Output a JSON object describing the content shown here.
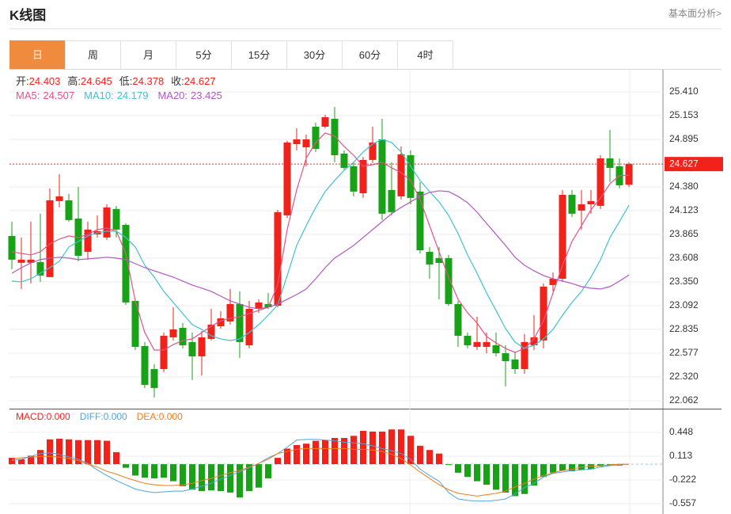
{
  "header": {
    "title": "K线图",
    "link": "基本面分析>"
  },
  "tabs": [
    "日",
    "周",
    "月",
    "5分",
    "15分",
    "30分",
    "60分",
    "4时"
  ],
  "active_tab": 0,
  "chart_data": [
    {
      "type": "candlestick",
      "ohlc_labels": [
        "开:",
        "高:",
        "低:",
        "收:"
      ],
      "up_color": "#f2221b",
      "down_color": "#17a217",
      "open": [
        23.848,
        23.557,
        23.557,
        23.565,
        23.402,
        24.226,
        24.234,
        24.037,
        23.676,
        23.865,
        23.831,
        24.14,
        23.968,
        23.144,
        22.655,
        22.405,
        22.405,
        22.749,
        22.852,
        22.698,
        22.543,
        22.732,
        22.869,
        22.921,
        23.11,
        22.663,
        23.058,
        23.11,
        23.092,
        24.071,
        24.843,
        24.809,
        25.032,
        25.032,
        25.118,
        24.741,
        24.603,
        24.311,
        24.672,
        24.895,
        24.346,
        24.277,
        24.723,
        24.329,
        23.676,
        23.608,
        23.608,
        23.11,
        22.766,
        22.646,
        22.646,
        22.663,
        22.577,
        22.509,
        22.405,
        22.663,
        22.715,
        23.316,
        23.384,
        24.294,
        24.123,
        24.191,
        24.174,
        24.689,
        24.603,
        24.403
      ],
      "high": [
        24.003,
        23.831,
        24.003,
        24.089,
        24.363,
        24.517,
        24.303,
        24.38,
        24.003,
        24.071,
        24.191,
        24.174,
        23.985,
        23.161,
        22.698,
        22.457,
        22.801,
        23.075,
        22.904,
        22.801,
        22.818,
        23.058,
        23.032,
        23.273,
        23.247,
        23.144,
        23.161,
        23.23,
        24.131,
        24.878,
        25.015,
        24.947,
        25.075,
        25.161,
        25.247,
        24.775,
        24.646,
        24.706,
        25.032,
        25.118,
        24.646,
        24.818,
        24.775,
        24.432,
        23.728,
        23.728,
        23.642,
        23.144,
        22.801,
        22.972,
        22.801,
        22.801,
        22.663,
        22.594,
        22.784,
        22.99,
        23.333,
        23.453,
        24.346,
        24.346,
        24.346,
        24.346,
        24.723,
        24.998,
        24.689,
        24.645
      ],
      "low": [
        23.488,
        23.273,
        23.333,
        23.35,
        23.402,
        24.157,
        24.003,
        23.574,
        23.591,
        23.831,
        23.805,
        23.831,
        23.101,
        22.612,
        22.2,
        22.097,
        22.371,
        22.715,
        22.629,
        22.286,
        22.337,
        22.715,
        22.843,
        22.887,
        22.526,
        22.629,
        23.015,
        23.058,
        23.075,
        24.045,
        24.775,
        24.603,
        24.758,
        25.015,
        24.646,
        24.569,
        24.277,
        24.26,
        24.638,
        24.02,
        24.071,
        24.243,
        24.191,
        23.659,
        23.384,
        23.161,
        23.092,
        22.646,
        22.629,
        22.612,
        22.577,
        22.543,
        22.217,
        22.354,
        22.354,
        22.612,
        22.629,
        23.247,
        23.35,
        24.054,
        23.917,
        24.089,
        24.14,
        24.432,
        24.363,
        24.378
      ],
      "close": [
        23.591,
        23.591,
        23.591,
        23.419,
        24.234,
        24.277,
        24.02,
        23.633,
        23.917,
        23.9,
        24.157,
        23.917,
        23.127,
        22.646,
        22.234,
        22.2,
        22.766,
        22.835,
        22.663,
        22.543,
        22.749,
        22.887,
        22.955,
        23.11,
        22.698,
        23.058,
        23.127,
        23.075,
        24.106,
        24.861,
        24.895,
        24.895,
        24.792,
        25.135,
        24.723,
        24.586,
        24.329,
        24.672,
        24.861,
        24.089,
        24.106,
        24.732,
        24.26,
        23.693,
        23.539,
        23.556,
        23.11,
        22.766,
        22.663,
        22.698,
        22.698,
        22.577,
        22.491,
        22.405,
        22.698,
        22.749,
        23.299,
        23.384,
        24.294,
        24.089,
        24.191,
        24.226,
        24.689,
        24.586,
        24.397,
        24.627
      ],
      "series": [
        {
          "name": "MA5:",
          "color": "#e3538a",
          "values": [
            23.676,
            23.659,
            23.642,
            23.676,
            23.762,
            23.814,
            23.848,
            23.831,
            23.865,
            23.917,
            23.934,
            23.9,
            23.659,
            23.144,
            22.801,
            22.611,
            22.611,
            22.671,
            22.714,
            22.732,
            22.801,
            22.869,
            22.929,
            22.955,
            22.972,
            23.007,
            23.041,
            23.075,
            23.316,
            23.917,
            24.346,
            24.689,
            24.861,
            24.964,
            24.93,
            24.818,
            24.723,
            24.603,
            24.62,
            24.646,
            24.586,
            24.535,
            24.449,
            24.243,
            23.959,
            23.676,
            23.402,
            23.161,
            23.015,
            22.904,
            22.758,
            22.689,
            22.629,
            22.586,
            22.629,
            22.732,
            22.929,
            23.23,
            23.53,
            23.788,
            23.959,
            24.131,
            24.26,
            24.415,
            24.5,
            24.507
          ]
        },
        {
          "name": "MA10:",
          "color": "#3fc1d6",
          "values": [
            23.359,
            23.35,
            23.384,
            23.444,
            23.504,
            23.574,
            23.728,
            23.788,
            23.848,
            23.883,
            23.9,
            23.9,
            23.831,
            23.728,
            23.53,
            23.402,
            23.247,
            23.127,
            23.007,
            22.887,
            22.835,
            22.766,
            22.732,
            22.714,
            22.732,
            22.801,
            22.887,
            22.989,
            23.101,
            23.419,
            23.745,
            23.959,
            24.157,
            24.329,
            24.449,
            24.56,
            24.646,
            24.758,
            24.844,
            24.895,
            24.861,
            24.758,
            24.603,
            24.449,
            24.329,
            24.217,
            24.071,
            23.874,
            23.642,
            23.444,
            23.23,
            23.041,
            22.844,
            22.698,
            22.629,
            22.663,
            22.732,
            22.835,
            22.989,
            23.127,
            23.247,
            23.402,
            23.591,
            23.831,
            24.003,
            24.179
          ]
        },
        {
          "name": "MA20:",
          "color": "#b157c2",
          "values": [
            23.444,
            23.504,
            23.556,
            23.591,
            23.608,
            23.617,
            23.608,
            23.591,
            23.599,
            23.608,
            23.617,
            23.608,
            23.591,
            23.548,
            23.504,
            23.47,
            23.436,
            23.402,
            23.359,
            23.316,
            23.282,
            23.247,
            23.196,
            23.144,
            23.11,
            23.075,
            23.058,
            23.075,
            23.11,
            23.161,
            23.213,
            23.273,
            23.384,
            23.504,
            23.608,
            23.676,
            23.745,
            23.831,
            23.917,
            24.003,
            24.089,
            24.157,
            24.217,
            24.277,
            24.32,
            24.337,
            24.329,
            24.277,
            24.208,
            24.106,
            23.985,
            23.865,
            23.745,
            23.617,
            23.53,
            23.47,
            23.419,
            23.384,
            23.359,
            23.333,
            23.299,
            23.282,
            23.273,
            23.299,
            23.359,
            23.425
          ]
        }
      ],
      "ylim": [
        21.976,
        25.65
      ],
      "yticks": [
        {
          "value": 25.41,
          "label": "25.410"
        },
        25.153,
        24.895,
        {
          "value": 24.38,
          "label": "24.380"
        },
        24.123,
        23.865,
        23.608,
        {
          "value": 23.35,
          "label": "23.350"
        },
        23.092,
        22.835,
        22.577,
        {
          "value": 22.32,
          "label": "22.320"
        },
        22.062
      ],
      "grid": true
    },
    {
      "type": "bar",
      "name": "MACD:",
      "value_label": "0.000",
      "up_color": "#f2221b",
      "down_color": "#17a217",
      "values": [
        0.09,
        0.07,
        0.12,
        0.2,
        0.35,
        0.36,
        0.35,
        0.34,
        0.34,
        0.34,
        0.33,
        0.17,
        -0.05,
        -0.16,
        -0.19,
        -0.2,
        -0.19,
        -0.24,
        -0.31,
        -0.36,
        -0.38,
        -0.37,
        -0.38,
        -0.4,
        -0.47,
        -0.38,
        -0.33,
        -0.2,
        0.09,
        0.22,
        0.27,
        0.29,
        0.33,
        0.34,
        0.37,
        0.37,
        0.4,
        0.47,
        0.46,
        0.46,
        0.49,
        0.49,
        0.4,
        0.26,
        0.2,
        0.15,
        -0.01,
        -0.12,
        -0.18,
        -0.24,
        -0.29,
        -0.36,
        -0.4,
        -0.45,
        -0.42,
        -0.3,
        -0.18,
        -0.12,
        -0.09,
        -0.1,
        -0.08,
        -0.07,
        -0.03,
        -0.02,
        -0.02,
        0
      ],
      "series": [
        {
          "name": "DIFF:",
          "value_label": "0.000",
          "color": "#4fa3e0",
          "values": [
            0.05,
            0.07,
            0.11,
            0.15,
            0.16,
            0.14,
            0.1,
            0.07,
            0.01,
            -0.08,
            -0.16,
            -0.23,
            -0.29,
            -0.35,
            -0.38,
            -0.4,
            -0.39,
            -0.38,
            -0.38,
            -0.35,
            -0.31,
            -0.27,
            -0.21,
            -0.16,
            -0.11,
            -0.05,
            0.01,
            0.09,
            0.15,
            0.24,
            0.34,
            0.35,
            0.35,
            0.34,
            0.33,
            0.31,
            0.3,
            0.29,
            0.26,
            0.22,
            0.19,
            0.15,
            0.07,
            -0.07,
            -0.16,
            -0.24,
            -0.4,
            -0.49,
            -0.51,
            -0.52,
            -0.52,
            -0.51,
            -0.49,
            -0.42,
            -0.33,
            -0.27,
            -0.18,
            -0.13,
            -0.11,
            -0.09,
            -0.08,
            -0.07,
            -0.04,
            -0.02,
            -0.01,
            0
          ]
        },
        {
          "name": "DEA:",
          "value_label": "0.000",
          "color": "#f07c1c",
          "values": [
            0.07,
            0.09,
            0.1,
            0.11,
            0.11,
            0.1,
            0.08,
            0.05,
            0,
            -0.04,
            -0.1,
            -0.14,
            -0.19,
            -0.23,
            -0.27,
            -0.29,
            -0.3,
            -0.3,
            -0.29,
            -0.27,
            -0.23,
            -0.2,
            -0.16,
            -0.12,
            -0.09,
            -0.04,
            0.01,
            0.07,
            0.15,
            0.18,
            0.21,
            0.22,
            0.22,
            0.22,
            0.22,
            0.22,
            0.21,
            0.21,
            0.2,
            0.18,
            0.14,
            0.08,
            -0.01,
            -0.11,
            -0.2,
            -0.29,
            -0.36,
            -0.41,
            -0.43,
            -0.45,
            -0.43,
            -0.41,
            -0.38,
            -0.32,
            -0.27,
            -0.21,
            -0.16,
            -0.12,
            -0.09,
            -0.07,
            -0.04,
            -0.03,
            -0.02,
            -0.01,
            0,
            0
          ]
        }
      ],
      "ylim": [
        -0.691,
        0.783
      ],
      "yticks": [
        0.448,
        0.113,
        -0.222,
        -0.557
      ],
      "grid": true
    }
  ]
}
